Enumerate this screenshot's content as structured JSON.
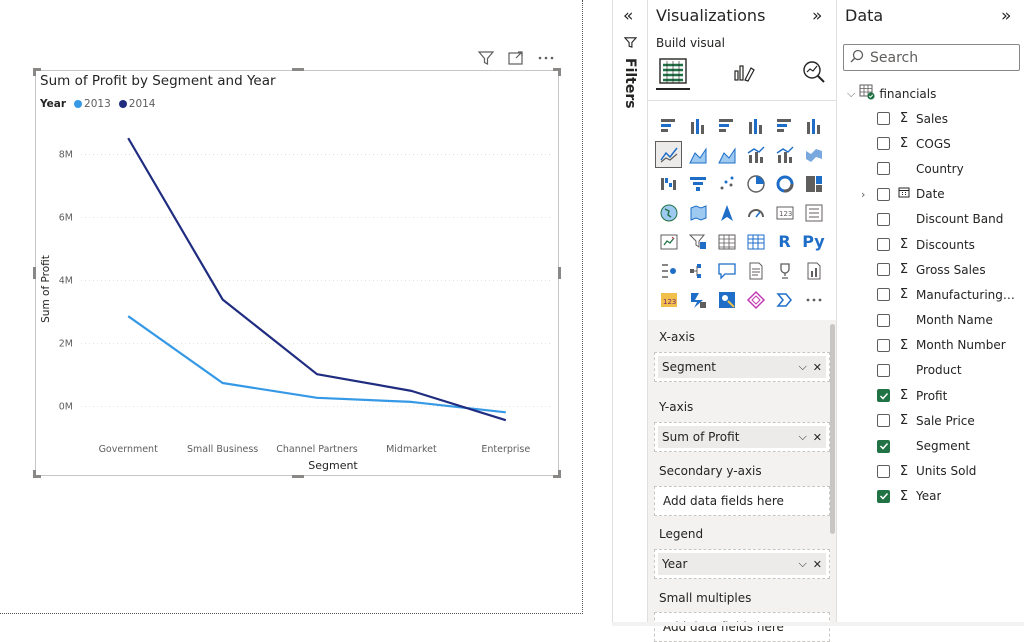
{
  "visual": {
    "title": "Sum of Profit by Segment and Year",
    "header_icons": [
      "filter-icon",
      "focus-mode-icon",
      "more-options-icon"
    ]
  },
  "chart_data": {
    "type": "line",
    "title": "Sum of Profit by Segment and Year",
    "legend_title": "Year",
    "legend_position": "top-left",
    "categories": [
      "Government",
      "Small Business",
      "Channel Partners",
      "Midmarket",
      "Enterprise"
    ],
    "xlabel": "Segment",
    "ylabel": "Sum of Profit",
    "yticks": [
      "0M",
      "2M",
      "4M",
      "6M",
      "8M"
    ],
    "ylim": [
      -0.9,
      9.0
    ],
    "grid": true,
    "series": [
      {
        "name": "2013",
        "color": "#3599e6",
        "values": [
          2.87,
          0.75,
          0.28,
          0.15,
          -0.18
        ]
      },
      {
        "name": "2014",
        "color": "#1f2c80",
        "values": [
          8.52,
          3.4,
          1.03,
          0.5,
          -0.43
        ]
      }
    ]
  },
  "filters": {
    "label": "Filters"
  },
  "visualizations": {
    "title": "Visualizations",
    "build_label": "Build visual",
    "build_tabs": [
      "build-visual-icon",
      "format-visual-icon",
      "analytics-icon"
    ],
    "gallery": [
      "stacked-bar-chart-icon",
      "stacked-column-chart-icon",
      "clustered-bar-chart-icon",
      "clustered-column-chart-icon",
      "100-stacked-bar-chart-icon",
      "100-stacked-column-chart-icon",
      "line-chart-icon",
      "area-chart-icon",
      "stacked-area-chart-icon",
      "line-and-stacked-column-icon",
      "line-and-clustered-column-icon",
      "ribbon-chart-icon",
      "waterfall-chart-icon",
      "funnel-chart-icon",
      "scatter-chart-icon",
      "pie-chart-icon",
      "donut-chart-icon",
      "treemap-icon",
      "map-icon",
      "filled-map-icon",
      "azure-map-icon",
      "gauge-icon",
      "card-icon",
      "multi-row-card-icon",
      "kpi-icon",
      "slicer-icon",
      "table-icon",
      "matrix-icon",
      "r-visual-icon",
      "python-visual-icon",
      "key-influencers-icon",
      "decomposition-tree-icon",
      "qa-icon",
      "smart-narrative-icon",
      "metrics-icon",
      "paginated-report-icon",
      "power-apps-icon",
      "power-automate-icon",
      "arcgis-icon",
      "diamond-visual-icon",
      "chevron-visual-icon",
      "more-visuals-icon"
    ],
    "wells": {
      "xaxis_label": "X-axis",
      "xaxis_value": "Segment",
      "yaxis_label": "Y-axis",
      "yaxis_value": "Sum of Profit",
      "secondary_label": "Secondary y-axis",
      "secondary_placeholder": "Add data fields here",
      "legend_label": "Legend",
      "legend_value": "Year",
      "small_multiples_label": "Small multiples",
      "small_multiples_placeholder": "Add data fields here"
    }
  },
  "data": {
    "title": "Data",
    "search_placeholder": "Search",
    "table_name": "financials",
    "fields": [
      {
        "name": "Sales",
        "type": "Σ",
        "checked": false,
        "expandable": false
      },
      {
        "name": "COGS",
        "type": "Σ",
        "checked": false,
        "expandable": false
      },
      {
        "name": "Country",
        "type": "",
        "checked": false,
        "expandable": false
      },
      {
        "name": "Date",
        "type": "calendar",
        "checked": false,
        "expandable": true
      },
      {
        "name": "Discount Band",
        "type": "",
        "checked": false,
        "expandable": false
      },
      {
        "name": "Discounts",
        "type": "Σ",
        "checked": false,
        "expandable": false
      },
      {
        "name": "Gross Sales",
        "type": "Σ",
        "checked": false,
        "expandable": false
      },
      {
        "name": "Manufacturing P...",
        "type": "Σ",
        "checked": false,
        "expandable": false
      },
      {
        "name": "Month Name",
        "type": "",
        "checked": false,
        "expandable": false
      },
      {
        "name": "Month Number",
        "type": "Σ",
        "checked": false,
        "expandable": false
      },
      {
        "name": "Product",
        "type": "",
        "checked": false,
        "expandable": false
      },
      {
        "name": "Profit",
        "type": "Σ",
        "checked": true,
        "expandable": false
      },
      {
        "name": "Sale Price",
        "type": "Σ",
        "checked": false,
        "expandable": false
      },
      {
        "name": "Segment",
        "type": "",
        "checked": true,
        "expandable": false
      },
      {
        "name": "Units Sold",
        "type": "Σ",
        "checked": false,
        "expandable": false
      },
      {
        "name": "Year",
        "type": "Σ",
        "checked": true,
        "expandable": false
      }
    ]
  }
}
